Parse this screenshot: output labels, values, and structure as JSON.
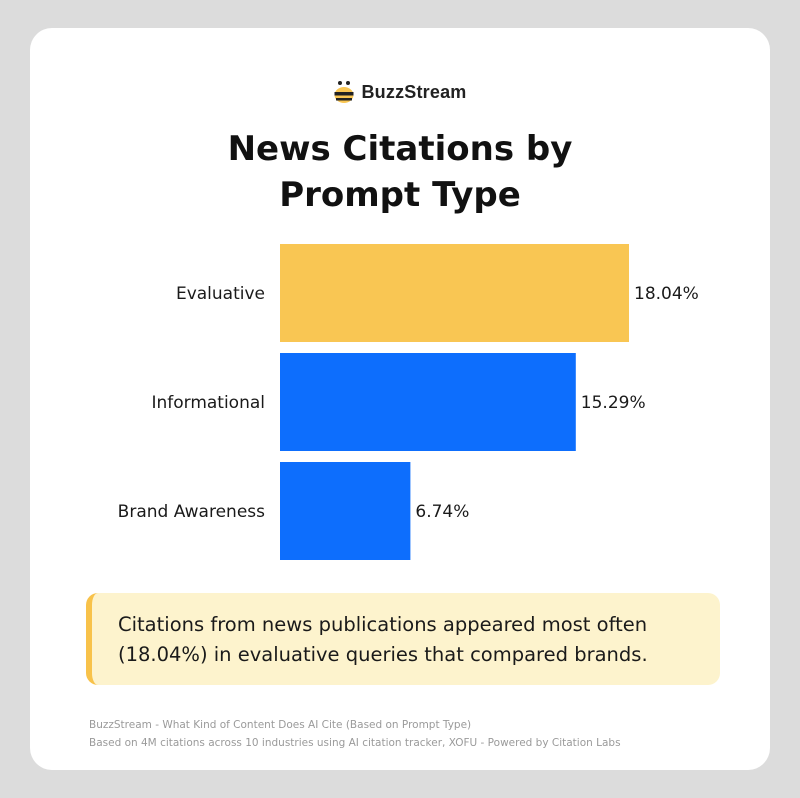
{
  "brand": {
    "name": "BuzzStream"
  },
  "title_lines": [
    "News Citations by",
    "Prompt Type"
  ],
  "colors": {
    "accent_yellow": "#f9c653",
    "accent_blue": "#0d6efd",
    "callout_bg": "#fdf3cd",
    "callout_border": "#f8c24a"
  },
  "chart_data": {
    "type": "bar",
    "orientation": "horizontal",
    "title": "News Citations by Prompt Type",
    "categories": [
      "Evaluative",
      "Informational",
      "Brand Awareness"
    ],
    "values": [
      18.04,
      15.29,
      6.74
    ],
    "value_labels": [
      "18.04%",
      "15.29%",
      "6.74%"
    ],
    "bar_colors": [
      "#f9c653",
      "#0d6efd",
      "#0d6efd"
    ],
    "xlim": [
      0,
      18.04
    ],
    "grid": false,
    "legend": false
  },
  "callout": {
    "lines": [
      "Citations from news publications appeared most often",
      "(18.04%) in evaluative queries that compared brands."
    ]
  },
  "footer": {
    "lines": [
      "BuzzStream - What Kind of Content Does AI Cite (Based on Prompt Type)",
      "Based on 4M citations across 10 industries using AI citation tracker, XOFU - Powered by Citation Labs"
    ]
  }
}
